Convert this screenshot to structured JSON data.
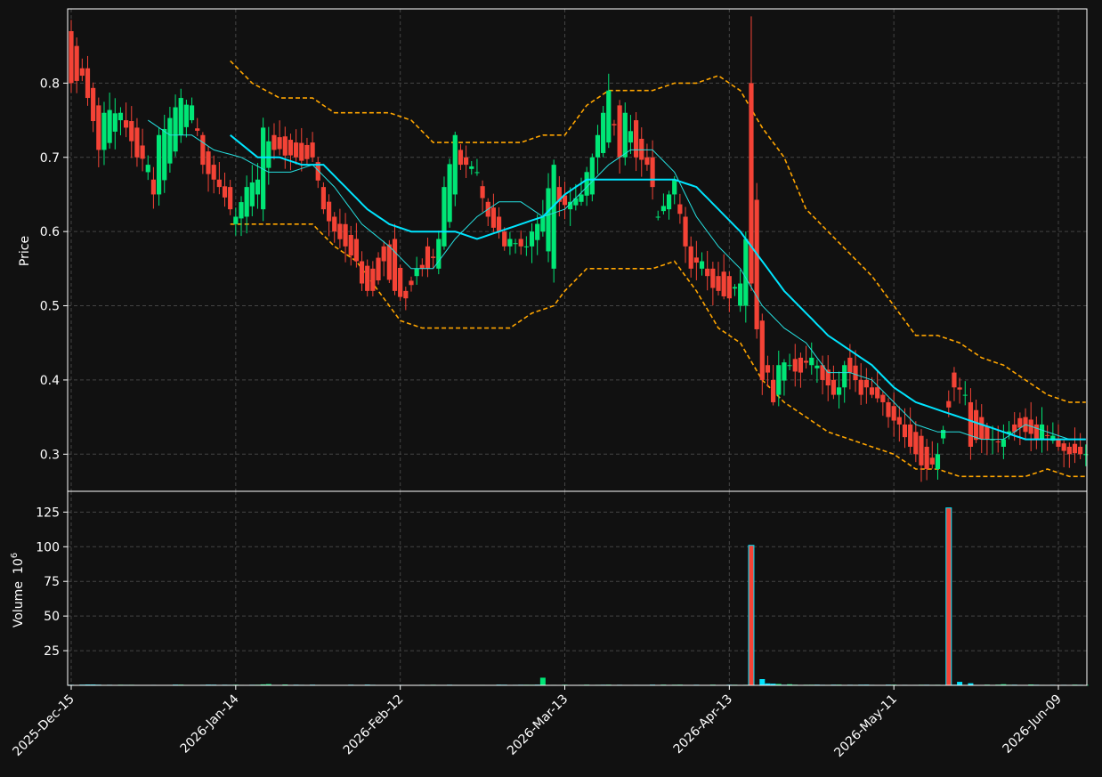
{
  "chart_data": [
    {
      "type": "candlestick",
      "panel": "price",
      "title": "",
      "xlabel": "",
      "ylabel": "Price",
      "ylim": [
        0.25,
        0.9
      ],
      "yticks": [
        0.3,
        0.4,
        0.5,
        0.6,
        0.7,
        0.8
      ],
      "ytick_labels": [
        "0.3",
        "0.4",
        "0.5",
        "0.6",
        "0.7",
        "0.8"
      ],
      "grid": true,
      "colors": {
        "up": "#00e676",
        "down": "#f44336",
        "ma_fast": "#26e0e0",
        "ma_slow": "#00e5ff",
        "bands": "#ffa500",
        "background": "#111111",
        "grid": "#444444"
      },
      "x_dates": [
        "2025-Dec-15",
        "2026-Jan-14",
        "2026-Feb-12",
        "2026-Mar-13",
        "2026-Apr-13",
        "2026-May-11",
        "2026-Jun-09"
      ],
      "x_tick_index": [
        0,
        30,
        60,
        90,
        120,
        150,
        180
      ],
      "x_count": 186,
      "ohlc_anchors": [
        [
          0,
          0.87,
          0.8
        ],
        [
          2,
          0.82,
          0.81
        ],
        [
          3,
          0.82,
          0.78
        ],
        [
          5,
          0.77,
          0.71
        ],
        [
          6,
          0.71,
          0.76
        ],
        [
          9,
          0.75,
          0.76
        ],
        [
          10,
          0.75,
          0.74
        ],
        [
          12,
          0.74,
          0.7
        ],
        [
          14,
          0.68,
          0.69
        ],
        [
          15,
          0.67,
          0.65
        ],
        [
          16,
          0.65,
          0.73
        ],
        [
          20,
          0.73,
          0.78
        ],
        [
          22,
          0.75,
          0.77
        ],
        [
          24,
          0.73,
          0.69
        ],
        [
          26,
          0.69,
          0.67
        ],
        [
          27,
          0.67,
          0.66
        ],
        [
          29,
          0.66,
          0.63
        ],
        [
          30,
          0.61,
          0.62
        ],
        [
          32,
          0.62,
          0.66
        ],
        [
          34,
          0.65,
          0.67
        ],
        [
          35,
          0.63,
          0.74
        ],
        [
          37,
          0.73,
          0.71
        ],
        [
          41,
          0.72,
          0.7
        ],
        [
          44,
          0.72,
          0.7
        ],
        [
          46,
          0.66,
          0.63
        ],
        [
          48,
          0.62,
          0.6
        ],
        [
          50,
          0.61,
          0.58
        ],
        [
          52,
          0.59,
          0.56
        ],
        [
          53,
          0.56,
          0.53
        ],
        [
          55,
          0.55,
          0.52
        ],
        [
          57,
          0.58,
          0.56
        ],
        [
          59,
          0.59,
          0.52
        ],
        [
          61,
          0.52,
          0.51
        ],
        [
          63,
          0.54,
          0.55
        ],
        [
          65,
          0.58,
          0.55
        ],
        [
          67,
          0.55,
          0.59
        ],
        [
          68,
          0.58,
          0.66
        ],
        [
          70,
          0.65,
          0.73
        ],
        [
          71,
          0.71,
          0.69
        ],
        [
          72,
          0.7,
          0.69
        ],
        [
          74,
          0.68,
          0.68
        ],
        [
          76,
          0.64,
          0.62
        ],
        [
          78,
          0.62,
          0.6
        ],
        [
          79,
          0.6,
          0.58
        ],
        [
          80,
          0.58,
          0.59
        ],
        [
          82,
          0.59,
          0.58
        ],
        [
          83,
          0.58,
          0.58
        ],
        [
          84,
          0.58,
          0.6
        ],
        [
          86,
          0.6,
          0.62
        ],
        [
          88,
          0.55,
          0.69
        ],
        [
          89,
          0.66,
          0.64
        ],
        [
          91,
          0.63,
          0.64
        ],
        [
          93,
          0.64,
          0.65
        ],
        [
          95,
          0.65,
          0.7
        ],
        [
          96,
          0.7,
          0.73
        ],
        [
          98,
          0.72,
          0.79
        ],
        [
          100,
          0.77,
          0.7
        ],
        [
          101,
          0.7,
          0.76
        ],
        [
          103,
          0.75,
          0.7
        ],
        [
          105,
          0.7,
          0.69
        ],
        [
          106,
          0.7,
          0.66
        ],
        [
          107,
          0.62,
          0.62
        ],
        [
          109,
          0.63,
          0.65
        ],
        [
          110,
          0.65,
          0.67
        ],
        [
          112,
          0.62,
          0.58
        ],
        [
          113,
          0.58,
          0.55
        ],
        [
          115,
          0.55,
          0.56
        ],
        [
          116,
          0.55,
          0.54
        ],
        [
          118,
          0.54,
          0.52
        ],
        [
          120,
          0.54,
          0.51
        ],
        [
          122,
          0.5,
          0.53
        ],
        [
          123,
          0.5,
          0.59
        ],
        [
          124,
          0.8,
          0.53
        ],
        [
          126,
          0.48,
          0.4
        ],
        [
          127,
          0.42,
          0.41
        ],
        [
          128,
          0.4,
          0.37
        ],
        [
          129,
          0.38,
          0.42
        ],
        [
          131,
          0.42,
          0.42
        ],
        [
          133,
          0.43,
          0.41
        ],
        [
          135,
          0.42,
          0.43
        ],
        [
          137,
          0.42,
          0.4
        ],
        [
          139,
          0.4,
          0.38
        ],
        [
          140,
          0.38,
          0.39
        ],
        [
          141,
          0.39,
          0.42
        ],
        [
          142,
          0.43,
          0.41
        ],
        [
          144,
          0.4,
          0.38
        ],
        [
          145,
          0.4,
          0.39
        ],
        [
          146,
          0.39,
          0.38
        ],
        [
          148,
          0.38,
          0.37
        ],
        [
          149,
          0.37,
          0.35
        ],
        [
          151,
          0.35,
          0.34
        ],
        [
          153,
          0.34,
          0.31
        ],
        [
          154,
          0.33,
          0.3
        ],
        [
          156,
          0.31,
          0.28
        ],
        [
          158,
          0.28,
          0.3
        ],
        [
          161,
          0.41,
          0.39
        ],
        [
          163,
          0.38,
          0.38
        ],
        [
          164,
          0.37,
          0.31
        ],
        [
          166,
          0.35,
          0.32
        ],
        [
          168,
          0.32,
          0.32
        ],
        [
          170,
          0.31,
          0.32
        ],
        [
          172,
          0.34,
          0.33
        ],
        [
          174,
          0.35,
          0.33
        ],
        [
          176,
          0.34,
          0.32
        ],
        [
          177,
          0.32,
          0.34
        ],
        [
          180,
          0.32,
          0.31
        ],
        [
          182,
          0.31,
          0.3
        ],
        [
          184,
          0.31,
          0.3
        ],
        [
          185,
          0.3,
          0.3
        ]
      ],
      "ma_fast_anchors": [
        [
          14,
          0.75
        ],
        [
          18,
          0.73
        ],
        [
          22,
          0.73
        ],
        [
          26,
          0.71
        ],
        [
          31,
          0.7
        ],
        [
          36,
          0.68
        ],
        [
          40,
          0.68
        ],
        [
          44,
          0.69
        ],
        [
          48,
          0.66
        ],
        [
          53,
          0.61
        ],
        [
          58,
          0.58
        ],
        [
          62,
          0.55
        ],
        [
          66,
          0.55
        ],
        [
          70,
          0.59
        ],
        [
          74,
          0.62
        ],
        [
          78,
          0.64
        ],
        [
          82,
          0.64
        ],
        [
          86,
          0.62
        ],
        [
          90,
          0.63
        ],
        [
          94,
          0.66
        ],
        [
          98,
          0.69
        ],
        [
          102,
          0.71
        ],
        [
          106,
          0.71
        ],
        [
          110,
          0.68
        ],
        [
          114,
          0.62
        ],
        [
          118,
          0.58
        ],
        [
          122,
          0.55
        ],
        [
          126,
          0.5
        ],
        [
          130,
          0.47
        ],
        [
          134,
          0.45
        ],
        [
          138,
          0.41
        ],
        [
          142,
          0.41
        ],
        [
          146,
          0.4
        ],
        [
          150,
          0.37
        ],
        [
          154,
          0.34
        ],
        [
          158,
          0.33
        ],
        [
          162,
          0.33
        ],
        [
          166,
          0.32
        ],
        [
          170,
          0.32
        ],
        [
          174,
          0.34
        ],
        [
          178,
          0.33
        ],
        [
          182,
          0.32
        ],
        [
          185,
          0.32
        ]
      ],
      "ma_slow_anchors": [
        [
          29,
          0.73
        ],
        [
          34,
          0.7
        ],
        [
          38,
          0.7
        ],
        [
          42,
          0.69
        ],
        [
          46,
          0.69
        ],
        [
          50,
          0.66
        ],
        [
          54,
          0.63
        ],
        [
          58,
          0.61
        ],
        [
          62,
          0.6
        ],
        [
          66,
          0.6
        ],
        [
          70,
          0.6
        ],
        [
          74,
          0.59
        ],
        [
          78,
          0.6
        ],
        [
          82,
          0.61
        ],
        [
          86,
          0.62
        ],
        [
          90,
          0.65
        ],
        [
          94,
          0.67
        ],
        [
          98,
          0.67
        ],
        [
          102,
          0.67
        ],
        [
          106,
          0.67
        ],
        [
          110,
          0.67
        ],
        [
          114,
          0.66
        ],
        [
          118,
          0.63
        ],
        [
          122,
          0.6
        ],
        [
          126,
          0.56
        ],
        [
          130,
          0.52
        ],
        [
          134,
          0.49
        ],
        [
          138,
          0.46
        ],
        [
          142,
          0.44
        ],
        [
          146,
          0.42
        ],
        [
          150,
          0.39
        ],
        [
          154,
          0.37
        ],
        [
          158,
          0.36
        ],
        [
          162,
          0.35
        ],
        [
          166,
          0.34
        ],
        [
          170,
          0.33
        ],
        [
          174,
          0.32
        ],
        [
          178,
          0.32
        ],
        [
          182,
          0.32
        ],
        [
          185,
          0.32
        ]
      ],
      "upper_band_anchors": [
        [
          29,
          0.83
        ],
        [
          33,
          0.8
        ],
        [
          38,
          0.78
        ],
        [
          44,
          0.78
        ],
        [
          48,
          0.76
        ],
        [
          53,
          0.76
        ],
        [
          58,
          0.76
        ],
        [
          62,
          0.75
        ],
        [
          66,
          0.72
        ],
        [
          70,
          0.72
        ],
        [
          74,
          0.72
        ],
        [
          78,
          0.72
        ],
        [
          82,
          0.72
        ],
        [
          86,
          0.73
        ],
        [
          90,
          0.73
        ],
        [
          94,
          0.77
        ],
        [
          98,
          0.79
        ],
        [
          102,
          0.79
        ],
        [
          106,
          0.79
        ],
        [
          110,
          0.8
        ],
        [
          114,
          0.8
        ],
        [
          118,
          0.81
        ],
        [
          122,
          0.79
        ],
        [
          126,
          0.74
        ],
        [
          130,
          0.7
        ],
        [
          134,
          0.63
        ],
        [
          138,
          0.6
        ],
        [
          142,
          0.57
        ],
        [
          146,
          0.54
        ],
        [
          150,
          0.5
        ],
        [
          154,
          0.46
        ],
        [
          158,
          0.46
        ],
        [
          162,
          0.45
        ],
        [
          166,
          0.43
        ],
        [
          170,
          0.42
        ],
        [
          174,
          0.4
        ],
        [
          178,
          0.38
        ],
        [
          182,
          0.37
        ],
        [
          185,
          0.37
        ]
      ],
      "lower_band_anchors": [
        [
          29,
          0.61
        ],
        [
          34,
          0.61
        ],
        [
          38,
          0.61
        ],
        [
          44,
          0.61
        ],
        [
          48,
          0.58
        ],
        [
          52,
          0.56
        ],
        [
          56,
          0.52
        ],
        [
          60,
          0.48
        ],
        [
          64,
          0.47
        ],
        [
          68,
          0.47
        ],
        [
          72,
          0.47
        ],
        [
          76,
          0.47
        ],
        [
          80,
          0.47
        ],
        [
          84,
          0.49
        ],
        [
          88,
          0.5
        ],
        [
          90,
          0.52
        ],
        [
          94,
          0.55
        ],
        [
          98,
          0.55
        ],
        [
          102,
          0.55
        ],
        [
          106,
          0.55
        ],
        [
          110,
          0.56
        ],
        [
          114,
          0.52
        ],
        [
          118,
          0.47
        ],
        [
          122,
          0.45
        ],
        [
          126,
          0.4
        ],
        [
          130,
          0.37
        ],
        [
          134,
          0.35
        ],
        [
          138,
          0.33
        ],
        [
          142,
          0.32
        ],
        [
          146,
          0.31
        ],
        [
          150,
          0.3
        ],
        [
          154,
          0.28
        ],
        [
          158,
          0.28
        ],
        [
          162,
          0.27
        ],
        [
          166,
          0.27
        ],
        [
          170,
          0.27
        ],
        [
          174,
          0.27
        ],
        [
          178,
          0.28
        ],
        [
          182,
          0.27
        ],
        [
          185,
          0.27
        ]
      ]
    },
    {
      "type": "bar",
      "panel": "volume",
      "title": "",
      "xlabel": "",
      "ylabel": "Volume",
      "ylabel_exponent": "10",
      "ylabel_exponent_power": "6",
      "ylim": [
        0,
        140
      ],
      "yticks": [
        25,
        50,
        75,
        100,
        125
      ],
      "ytick_labels": [
        "25",
        "50",
        "75",
        "100",
        "125"
      ],
      "grid": true,
      "volume_anchors": [
        [
          0,
          0.4
        ],
        [
          3,
          0.6
        ],
        [
          4,
          0.6
        ],
        [
          20,
          0.5
        ],
        [
          35,
          0.7
        ],
        [
          36,
          0.9
        ],
        [
          39,
          0.6
        ],
        [
          54,
          0.5
        ],
        [
          86,
          5.5
        ],
        [
          108,
          0.5
        ],
        [
          124,
          101
        ],
        [
          126,
          4.5
        ],
        [
          127,
          1.4
        ],
        [
          128,
          1.2
        ],
        [
          129,
          1.0
        ],
        [
          131,
          0.8
        ],
        [
          140,
          0.5
        ],
        [
          145,
          0.5
        ],
        [
          150,
          0.5
        ],
        [
          160,
          128
        ],
        [
          162,
          2.5
        ],
        [
          164,
          1.5
        ],
        [
          170,
          0.8
        ],
        [
          175,
          0.6
        ]
      ]
    }
  ]
}
